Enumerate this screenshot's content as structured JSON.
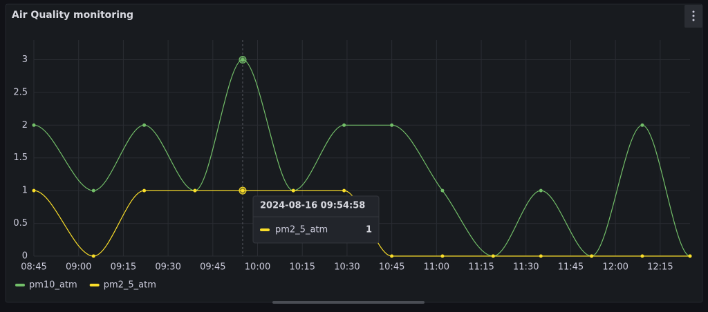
{
  "panel": {
    "title": "Air Quality monitoring"
  },
  "chart_data": {
    "type": "line",
    "x": [
      "08:45",
      "09:05",
      "09:22",
      "09:39",
      "09:55",
      "10:12",
      "10:29",
      "10:45",
      "11:02",
      "11:19",
      "11:35",
      "11:52",
      "12:09",
      "12:25"
    ],
    "series": [
      {
        "name": "pm10_atm",
        "color": "#73bf69",
        "values": [
          2,
          1,
          2,
          1,
          3,
          1,
          2,
          2,
          1,
          0,
          1,
          0,
          2,
          0
        ]
      },
      {
        "name": "pm2_5_atm",
        "color": "#fade2a",
        "values": [
          1,
          0,
          1,
          1,
          1,
          1,
          1,
          0,
          0,
          0,
          0,
          0,
          0,
          0
        ]
      }
    ],
    "xlim": [
      "08:45",
      "12:25"
    ],
    "xticks": [
      "08:45",
      "09:00",
      "09:15",
      "09:30",
      "09:45",
      "10:00",
      "10:15",
      "10:30",
      "10:45",
      "11:00",
      "11:15",
      "11:30",
      "11:45",
      "12:00",
      "12:15"
    ],
    "ylim": [
      0,
      3.3
    ],
    "yticks": [
      0,
      0.5,
      1,
      1.5,
      2,
      2.5,
      3
    ],
    "grid": true,
    "legend": "bottom-left",
    "tooltip": {
      "title": "2024-08-16 09:54:58",
      "series": 1,
      "index": 4
    }
  }
}
